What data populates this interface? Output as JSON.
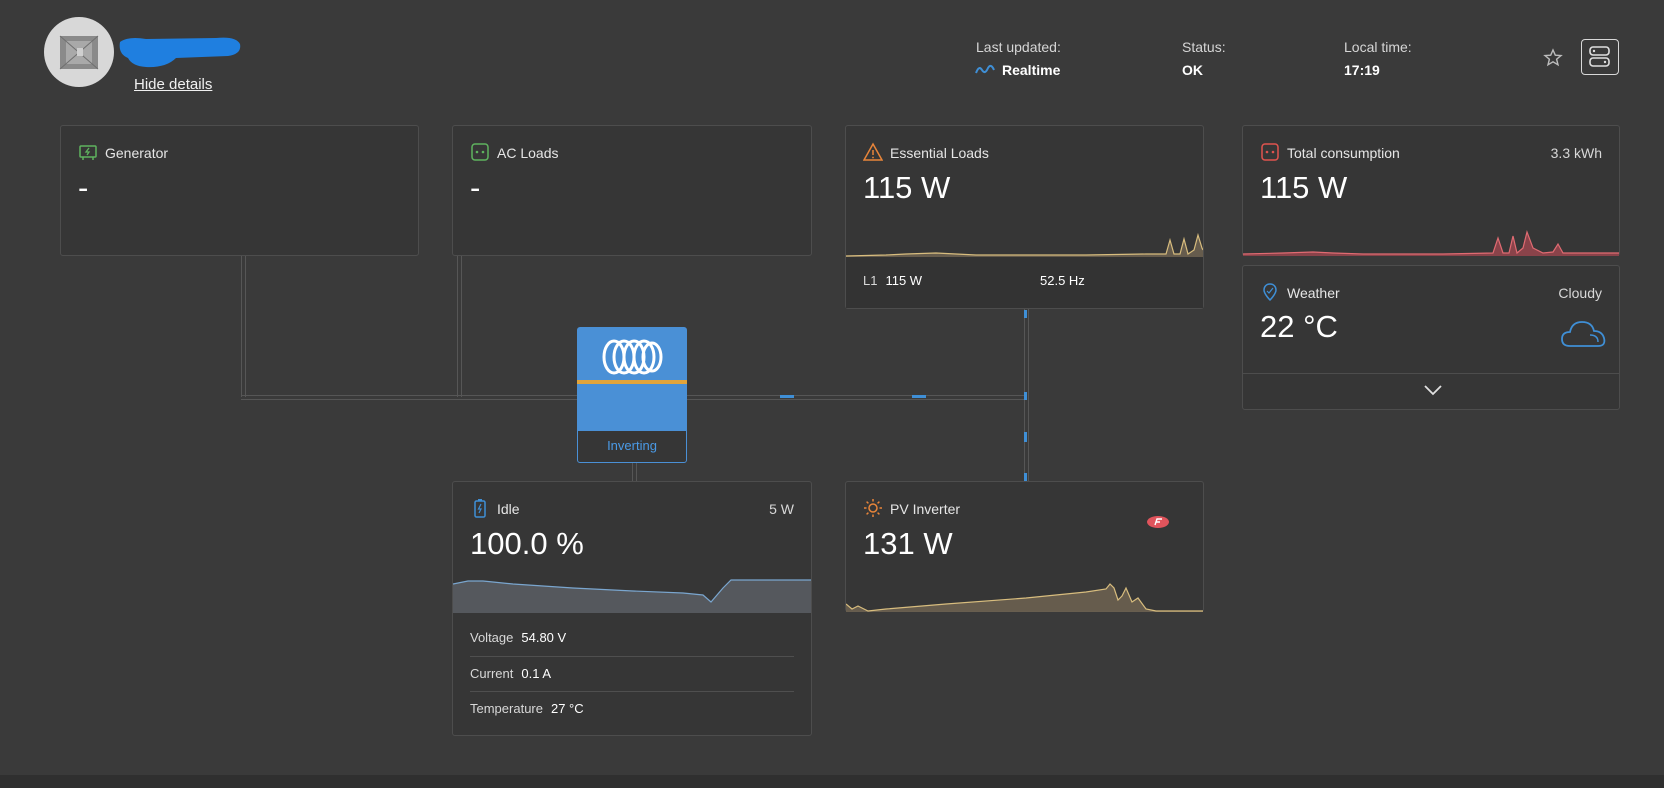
{
  "header": {
    "hide_details": "Hide details",
    "last_updated_label": "Last updated:",
    "last_updated_value": "Realtime",
    "status_label": "Status:",
    "status_value": "OK",
    "local_time_label": "Local time:",
    "local_time_value": "17:19"
  },
  "colors": {
    "background": "#3a3a3a",
    "card": "#363636",
    "accent_blue": "#3f8fd6",
    "green_icon": "#5fb35f",
    "orange_icon": "#e8853a",
    "red_icon": "#e0544f",
    "chart_yellow": "#d8bd7e",
    "chart_red": "#e06b72",
    "chart_blue": "#7aa6cf"
  },
  "generator": {
    "title": "Generator",
    "value": "-",
    "icon": "generator-icon"
  },
  "ac_loads": {
    "title": "AC Loads",
    "value": "-",
    "icon": "socket-icon"
  },
  "essential_loads": {
    "title": "Essential Loads",
    "value": "115 W",
    "icon": "warning-icon",
    "phase_label": "L1",
    "phase_value": "115 W",
    "frequency": "52.5 Hz"
  },
  "total_consumption": {
    "title": "Total consumption",
    "value": "115 W",
    "energy": "3.3 kWh",
    "icon": "socket-icon"
  },
  "weather": {
    "title": "Weather",
    "value": "22 °C",
    "condition": "Cloudy",
    "icon": "location-pin-icon"
  },
  "inverter": {
    "status": "Inverting",
    "icon": "victron-logo-icon"
  },
  "battery": {
    "title": "Idle",
    "value": "100.0 %",
    "power": "5 W",
    "icon": "battery-icon",
    "voltage_label": "Voltage",
    "voltage_value": "54.80 V",
    "current_label": "Current",
    "current_value": "0.1 A",
    "temperature_label": "Temperature",
    "temperature_value": "27 °C"
  },
  "pv_inverter": {
    "title": "PV Inverter",
    "value": "131 W",
    "icon": "sun-icon",
    "badge_icon": "fronius-logo-icon"
  }
}
